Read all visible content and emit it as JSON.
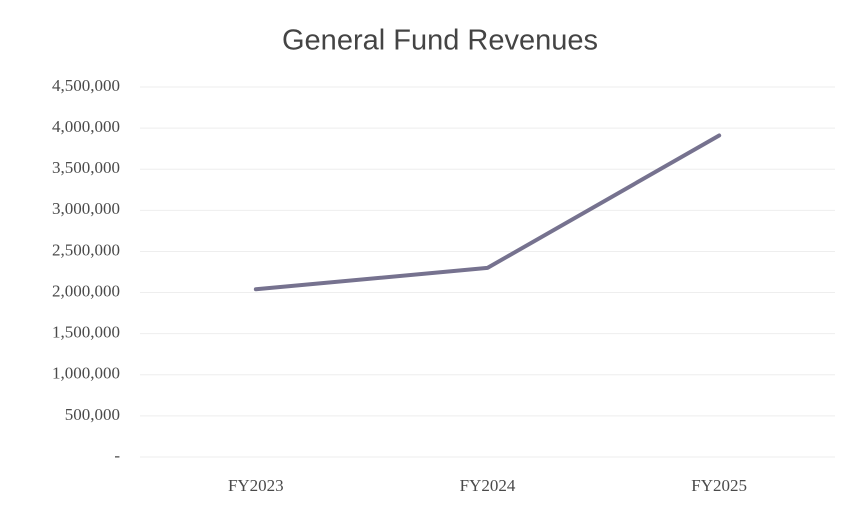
{
  "chart_data": {
    "type": "line",
    "title": "General Fund Revenues",
    "categories": [
      "FY2023",
      "FY2024",
      "FY2025"
    ],
    "series": [
      {
        "name": "General Fund Revenues",
        "color": "#76728f",
        "values": [
          2040000,
          2300000,
          3910000
        ]
      }
    ],
    "ylim": [
      0,
      4500000
    ],
    "yticks": [
      {
        "value": 0,
        "label": "-"
      },
      {
        "value": 500000,
        "label": "500,000"
      },
      {
        "value": 1000000,
        "label": "1,000,000"
      },
      {
        "value": 1500000,
        "label": "1,500,000"
      },
      {
        "value": 2000000,
        "label": "2,000,000"
      },
      {
        "value": 2500000,
        "label": "2,500,000"
      },
      {
        "value": 3000000,
        "label": "3,000,000"
      },
      {
        "value": 3500000,
        "label": "3,500,000"
      },
      {
        "value": 4000000,
        "label": "4,000,000"
      },
      {
        "value": 4500000,
        "label": "4,500,000"
      }
    ],
    "grid": true
  }
}
